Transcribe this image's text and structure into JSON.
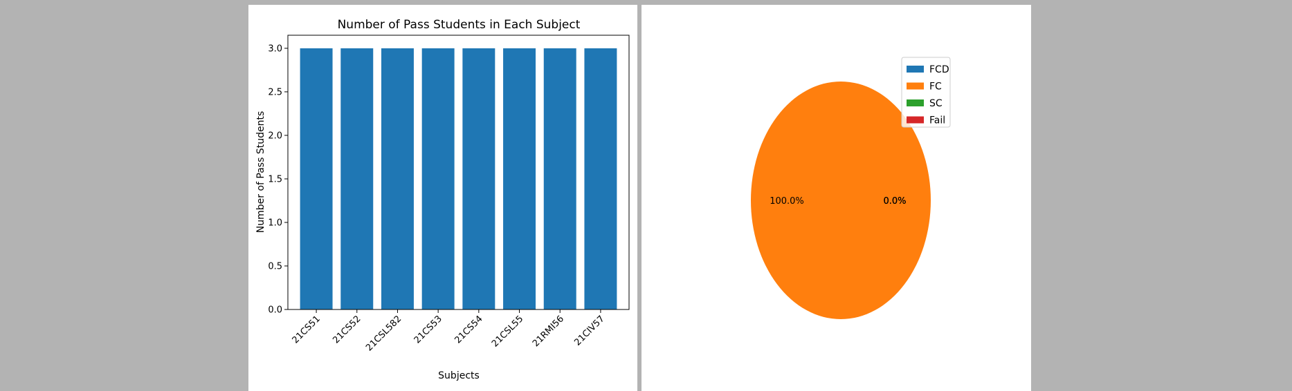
{
  "chart_data": [
    {
      "type": "bar",
      "title": "Number of Pass Students in Each Subject",
      "xlabel": "Subjects",
      "ylabel": "Number of Pass Students",
      "categories": [
        "21CS51",
        "21CS52",
        "21CSL582",
        "21CS53",
        "21CS54",
        "21CSL55",
        "21RMI56",
        "21CIV57"
      ],
      "values": [
        3,
        3,
        3,
        3,
        3,
        3,
        3,
        3
      ],
      "ylim": [
        0,
        3.15
      ],
      "yticks": [
        "0.0",
        "0.5",
        "1.0",
        "1.5",
        "2.0",
        "2.5",
        "3.0"
      ],
      "color": "#1f77b4",
      "grid": false
    },
    {
      "type": "pie",
      "labels": [
        "FCD",
        "FC",
        "SC",
        "Fail"
      ],
      "values": [
        0,
        100,
        0,
        0
      ],
      "autopct": [
        "0.0%",
        "100.0%",
        "0.0%",
        "0.0%"
      ],
      "colors": [
        "#1f77b4",
        "#ff7f0e",
        "#2ca02c",
        "#d62728"
      ],
      "legend_placement": "top-right"
    }
  ]
}
